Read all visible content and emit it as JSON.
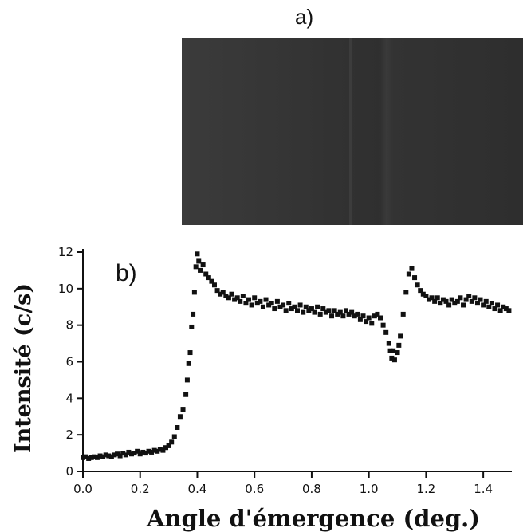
{
  "figure": {
    "panel_a_label": "a)",
    "panel_b_label": "b)"
  },
  "chart_data": {
    "type": "scatter",
    "xlabel": "Angle d'émergence (deg.)",
    "ylabel": "Intensité (c/s)",
    "xlim": [
      0.0,
      1.5
    ],
    "ylim": [
      0,
      12
    ],
    "xticks": [
      "0.0",
      "0.2",
      "0.4",
      "0.6",
      "0.8",
      "1.0",
      "1.2",
      "1.4"
    ],
    "yticks": [
      "0",
      "2",
      "4",
      "6",
      "8",
      "10",
      "12"
    ],
    "grid": false,
    "marker": "square",
    "color": "#111111",
    "series": [
      {
        "points": [
          [
            0.0,
            0.75
          ],
          [
            0.01,
            0.8
          ],
          [
            0.02,
            0.7
          ],
          [
            0.03,
            0.75
          ],
          [
            0.04,
            0.8
          ],
          [
            0.05,
            0.75
          ],
          [
            0.06,
            0.85
          ],
          [
            0.07,
            0.8
          ],
          [
            0.08,
            0.9
          ],
          [
            0.09,
            0.85
          ],
          [
            0.1,
            0.8
          ],
          [
            0.11,
            0.9
          ],
          [
            0.12,
            0.95
          ],
          [
            0.13,
            0.85
          ],
          [
            0.14,
            1.0
          ],
          [
            0.15,
            0.9
          ],
          [
            0.16,
            1.05
          ],
          [
            0.17,
            0.95
          ],
          [
            0.18,
            1.0
          ],
          [
            0.19,
            1.1
          ],
          [
            0.2,
            0.95
          ],
          [
            0.21,
            1.05
          ],
          [
            0.22,
            1.0
          ],
          [
            0.23,
            1.1
          ],
          [
            0.24,
            1.05
          ],
          [
            0.25,
            1.15
          ],
          [
            0.26,
            1.1
          ],
          [
            0.27,
            1.2
          ],
          [
            0.28,
            1.15
          ],
          [
            0.29,
            1.3
          ],
          [
            0.3,
            1.4
          ],
          [
            0.31,
            1.6
          ],
          [
            0.32,
            1.9
          ],
          [
            0.33,
            2.4
          ],
          [
            0.34,
            3.0
          ],
          [
            0.35,
            3.4
          ],
          [
            0.36,
            4.2
          ],
          [
            0.365,
            5.0
          ],
          [
            0.37,
            5.9
          ],
          [
            0.375,
            6.5
          ],
          [
            0.38,
            7.9
          ],
          [
            0.385,
            8.6
          ],
          [
            0.39,
            9.8
          ],
          [
            0.395,
            11.2
          ],
          [
            0.4,
            11.9
          ],
          [
            0.405,
            11.5
          ],
          [
            0.41,
            11.0
          ],
          [
            0.42,
            11.3
          ],
          [
            0.43,
            10.8
          ],
          [
            0.44,
            10.6
          ],
          [
            0.45,
            10.4
          ],
          [
            0.46,
            10.2
          ],
          [
            0.47,
            9.9
          ],
          [
            0.48,
            9.7
          ],
          [
            0.49,
            9.8
          ],
          [
            0.5,
            9.6
          ],
          [
            0.51,
            9.5
          ],
          [
            0.52,
            9.7
          ],
          [
            0.53,
            9.4
          ],
          [
            0.54,
            9.5
          ],
          [
            0.55,
            9.3
          ],
          [
            0.56,
            9.6
          ],
          [
            0.57,
            9.2
          ],
          [
            0.58,
            9.4
          ],
          [
            0.59,
            9.1
          ],
          [
            0.6,
            9.5
          ],
          [
            0.61,
            9.2
          ],
          [
            0.62,
            9.3
          ],
          [
            0.63,
            9.0
          ],
          [
            0.64,
            9.4
          ],
          [
            0.65,
            9.1
          ],
          [
            0.66,
            9.2
          ],
          [
            0.67,
            8.9
          ],
          [
            0.68,
            9.3
          ],
          [
            0.69,
            9.0
          ],
          [
            0.7,
            9.1
          ],
          [
            0.71,
            8.8
          ],
          [
            0.72,
            9.2
          ],
          [
            0.73,
            8.9
          ],
          [
            0.74,
            9.0
          ],
          [
            0.75,
            8.8
          ],
          [
            0.76,
            9.1
          ],
          [
            0.77,
            8.7
          ],
          [
            0.78,
            9.0
          ],
          [
            0.79,
            8.8
          ],
          [
            0.8,
            8.9
          ],
          [
            0.81,
            8.7
          ],
          [
            0.82,
            9.0
          ],
          [
            0.83,
            8.6
          ],
          [
            0.84,
            8.9
          ],
          [
            0.85,
            8.7
          ],
          [
            0.86,
            8.8
          ],
          [
            0.87,
            8.5
          ],
          [
            0.88,
            8.8
          ],
          [
            0.89,
            8.6
          ],
          [
            0.9,
            8.7
          ],
          [
            0.91,
            8.5
          ],
          [
            0.92,
            8.8
          ],
          [
            0.93,
            8.6
          ],
          [
            0.94,
            8.7
          ],
          [
            0.95,
            8.5
          ],
          [
            0.96,
            8.6
          ],
          [
            0.97,
            8.3
          ],
          [
            0.98,
            8.5
          ],
          [
            0.99,
            8.2
          ],
          [
            1.0,
            8.4
          ],
          [
            1.01,
            8.1
          ],
          [
            1.02,
            8.5
          ],
          [
            1.03,
            8.6
          ],
          [
            1.04,
            8.4
          ],
          [
            1.05,
            8.0
          ],
          [
            1.06,
            7.6
          ],
          [
            1.07,
            7.0
          ],
          [
            1.075,
            6.6
          ],
          [
            1.08,
            6.2
          ],
          [
            1.085,
            6.6
          ],
          [
            1.09,
            6.1
          ],
          [
            1.1,
            6.5
          ],
          [
            1.105,
            6.9
          ],
          [
            1.11,
            7.4
          ],
          [
            1.12,
            8.6
          ],
          [
            1.13,
            9.8
          ],
          [
            1.14,
            10.8
          ],
          [
            1.15,
            11.1
          ],
          [
            1.16,
            10.6
          ],
          [
            1.17,
            10.2
          ],
          [
            1.18,
            9.9
          ],
          [
            1.19,
            9.7
          ],
          [
            1.2,
            9.6
          ],
          [
            1.21,
            9.4
          ],
          [
            1.22,
            9.5
          ],
          [
            1.23,
            9.3
          ],
          [
            1.24,
            9.5
          ],
          [
            1.25,
            9.2
          ],
          [
            1.26,
            9.4
          ],
          [
            1.27,
            9.3
          ],
          [
            1.28,
            9.1
          ],
          [
            1.29,
            9.4
          ],
          [
            1.3,
            9.2
          ],
          [
            1.31,
            9.3
          ],
          [
            1.32,
            9.5
          ],
          [
            1.33,
            9.1
          ],
          [
            1.34,
            9.4
          ],
          [
            1.35,
            9.6
          ],
          [
            1.36,
            9.3
          ],
          [
            1.37,
            9.5
          ],
          [
            1.38,
            9.2
          ],
          [
            1.39,
            9.4
          ],
          [
            1.4,
            9.1
          ],
          [
            1.41,
            9.3
          ],
          [
            1.42,
            9.0
          ],
          [
            1.43,
            9.2
          ],
          [
            1.44,
            8.9
          ],
          [
            1.45,
            9.1
          ],
          [
            1.46,
            8.8
          ],
          [
            1.47,
            9.0
          ],
          [
            1.48,
            8.9
          ],
          [
            1.49,
            8.8
          ]
        ]
      }
    ]
  }
}
